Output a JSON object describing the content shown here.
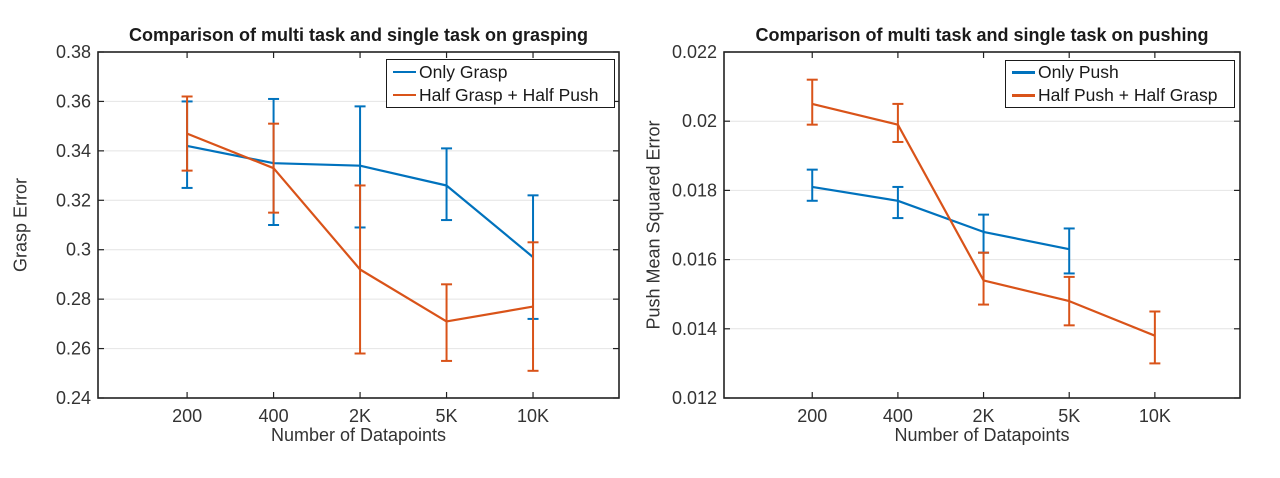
{
  "colors": {
    "blue": "#0072BD",
    "orange": "#D95319",
    "grid": "#E4E4E4",
    "axis": "#222222",
    "tick_text": "#333333"
  },
  "chart_data": [
    {
      "type": "line",
      "title": "Comparison of multi task and single task on grasping",
      "xlabel": "Number of Datapoints",
      "ylabel": "Grasp Error",
      "categories": [
        "200",
        "400",
        "2K",
        "5K",
        "10K"
      ],
      "ylim": [
        0.24,
        0.38
      ],
      "ytick_labels": [
        "0.24",
        "0.26",
        "0.28",
        "0.3",
        "0.32",
        "0.34",
        "0.36",
        "0.38"
      ],
      "grid": "horizontal-only",
      "legend_position": "top-right",
      "error_bars": true,
      "series": [
        {
          "name": "Only Grasp",
          "color_key": "blue",
          "values": [
            0.342,
            0.335,
            0.334,
            0.326,
            0.297
          ],
          "err_low": [
            0.325,
            0.31,
            0.309,
            0.312,
            0.272
          ],
          "err_high": [
            0.36,
            0.361,
            0.358,
            0.341,
            0.322
          ]
        },
        {
          "name": "Half Grasp + Half Push",
          "color_key": "orange",
          "values": [
            0.347,
            0.333,
            0.292,
            0.271,
            0.277
          ],
          "err_low": [
            0.332,
            0.315,
            0.258,
            0.255,
            0.251
          ],
          "err_high": [
            0.362,
            0.351,
            0.326,
            0.286,
            0.303
          ]
        }
      ]
    },
    {
      "type": "line",
      "title": "Comparison of multi task and single task on pushing",
      "xlabel": "Number of Datapoints",
      "ylabel": "Push Mean Squared Error",
      "categories": [
        "200",
        "400",
        "2K",
        "5K",
        "10K"
      ],
      "ylim": [
        0.012,
        0.022
      ],
      "ytick_labels": [
        "0.012",
        "0.014",
        "0.016",
        "0.018",
        "0.02",
        "0.022"
      ],
      "grid": "horizontal-only",
      "legend_position": "top-right",
      "error_bars": true,
      "series": [
        {
          "name": "Only Push",
          "color_key": "blue",
          "values": [
            0.0181,
            0.0177,
            0.0168,
            0.0163,
            null
          ],
          "err_low": [
            0.0177,
            0.0172,
            0.0162,
            0.0156,
            null
          ],
          "err_high": [
            0.0186,
            0.0181,
            0.0173,
            0.0169,
            null
          ]
        },
        {
          "name": "Half Push + Half Grasp",
          "color_key": "orange",
          "values": [
            0.0205,
            0.0199,
            0.0154,
            0.0148,
            0.0138
          ],
          "err_low": [
            0.0199,
            0.0194,
            0.0147,
            0.0141,
            0.013
          ],
          "err_high": [
            0.0212,
            0.0205,
            0.0162,
            0.0155,
            0.0145
          ]
        }
      ]
    }
  ]
}
